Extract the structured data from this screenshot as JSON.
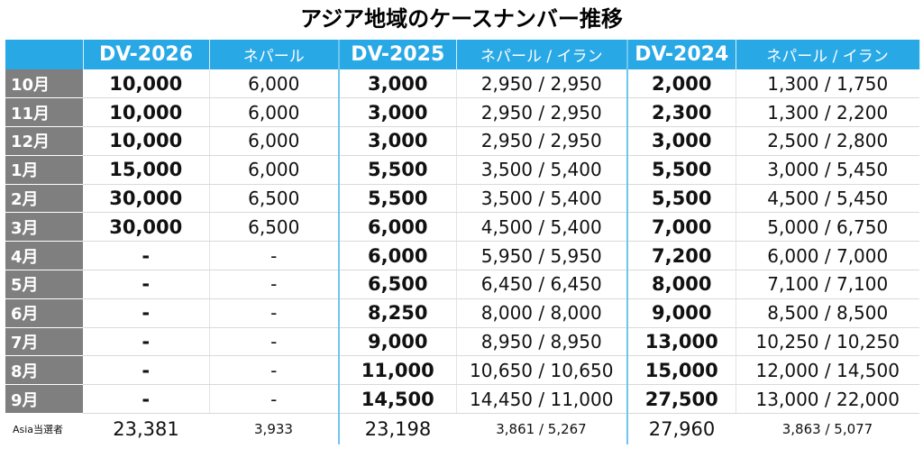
{
  "title": "アジア地域のケースナンバー推移",
  "headers": [
    "DV-2026",
    "ネパール",
    "DV-2025",
    "ネパール / イラン",
    "DV-2024",
    "ネパール / イラン"
  ],
  "rows": [
    {
      "month": "10月",
      "dv2026": "10,000",
      "nepal2026": "6,000",
      "dv2025": "3,000",
      "ni2025": "2,950 / 2,950",
      "dv2024": "2,000",
      "ni2024": "1,300 / 1,750"
    },
    {
      "month": "11月",
      "dv2026": "10,000",
      "nepal2026": "6,000",
      "dv2025": "3,000",
      "ni2025": "2,950 / 2,950",
      "dv2024": "2,300",
      "ni2024": "1,300 / 2,200"
    },
    {
      "month": "12月",
      "dv2026": "10,000",
      "nepal2026": "6,000",
      "dv2025": "3,000",
      "ni2025": "2,950 / 2,950",
      "dv2024": "3,000",
      "ni2024": "2,500 / 2,800"
    },
    {
      "month": "1月",
      "dv2026": "15,000",
      "nepal2026": "6,000",
      "dv2025": "5,500",
      "ni2025": "3,500 / 5,400",
      "dv2024": "5,500",
      "ni2024": "3,000 / 5,450"
    },
    {
      "month": "2月",
      "dv2026": "30,000",
      "nepal2026": "6,500",
      "dv2025": "5,500",
      "ni2025": "3,500 / 5,400",
      "dv2024": "5,500",
      "ni2024": "4,500 / 5,450"
    },
    {
      "month": "3月",
      "dv2026": "30,000",
      "nepal2026": "6,500",
      "dv2025": "6,000",
      "ni2025": "4,500 / 5,400",
      "dv2024": "7,000",
      "ni2024": "5,000 / 6,750"
    },
    {
      "month": "4月",
      "dv2026": "-",
      "nepal2026": "-",
      "dv2025": "6,000",
      "ni2025": "5,950 / 5,950",
      "dv2024": "7,200",
      "ni2024": "6,000 / 7,000"
    },
    {
      "month": "5月",
      "dv2026": "-",
      "nepal2026": "-",
      "dv2025": "6,500",
      "ni2025": "6,450 / 6,450",
      "dv2024": "8,000",
      "ni2024": "7,100 / 7,100"
    },
    {
      "month": "6月",
      "dv2026": "-",
      "nepal2026": "-",
      "dv2025": "8,250",
      "ni2025": "8,000 / 8,000",
      "dv2024": "9,000",
      "ni2024": "8,500 / 8,500"
    },
    {
      "month": "7月",
      "dv2026": "-",
      "nepal2026": "-",
      "dv2025": "9,000",
      "ni2025": "8,950 / 8,950",
      "dv2024": "13,000",
      "ni2024": "10,250 / 10,250"
    },
    {
      "month": "8月",
      "dv2026": "-",
      "nepal2026": "-",
      "dv2025": "11,000",
      "ni2025": "10,650 / 10,650",
      "dv2024": "15,000",
      "ni2024": "12,000 / 14,500"
    },
    {
      "month": "9月",
      "dv2026": "-",
      "nepal2026": "-",
      "dv2025": "14,500",
      "ni2025": "14,450 / 11,000",
      "dv2024": "27,500",
      "ni2024": "13,000 / 22,000"
    }
  ],
  "footer": {
    "label": "Asia当選者",
    "dv2026": "23,381",
    "nepal2026": "3,933",
    "dv2025": "23,198",
    "ni2025": "3,861 / 5,267",
    "dv2024": "27,960",
    "ni2024": "3,863 / 5,077"
  }
}
